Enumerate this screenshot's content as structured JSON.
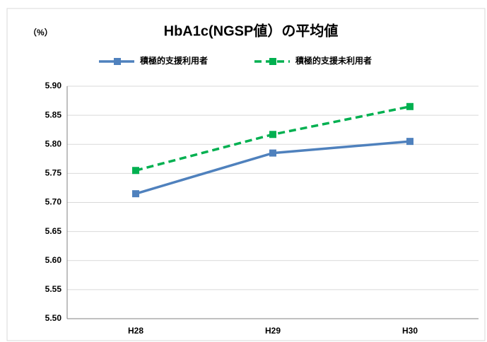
{
  "chart_data": {
    "type": "line",
    "title": "HbA1c(NGSP値）の平均値",
    "y_unit_label": "（%）",
    "categories": [
      "H28",
      "H29",
      "H30"
    ],
    "series": [
      {
        "name": "積極的支援利用者",
        "color": "#4f81bd",
        "dashed": false,
        "values": [
          5.715,
          5.785,
          5.805
        ]
      },
      {
        "name": "積極的支援未利用者",
        "color": "#00b050",
        "dashed": true,
        "values": [
          5.755,
          5.817,
          5.865
        ]
      }
    ],
    "ylim": [
      5.5,
      5.9
    ],
    "yticks": [
      {
        "value": 5.5,
        "label": "5.50"
      },
      5.55,
      {
        "value": 5.6,
        "label": "5.60"
      },
      5.65,
      {
        "value": 5.7,
        "label": "5.70"
      },
      5.75,
      {
        "value": 5.8,
        "label": "5.80"
      },
      5.85,
      {
        "value": 5.9,
        "label": "5.90"
      }
    ],
    "grid": true,
    "legend": "top"
  }
}
